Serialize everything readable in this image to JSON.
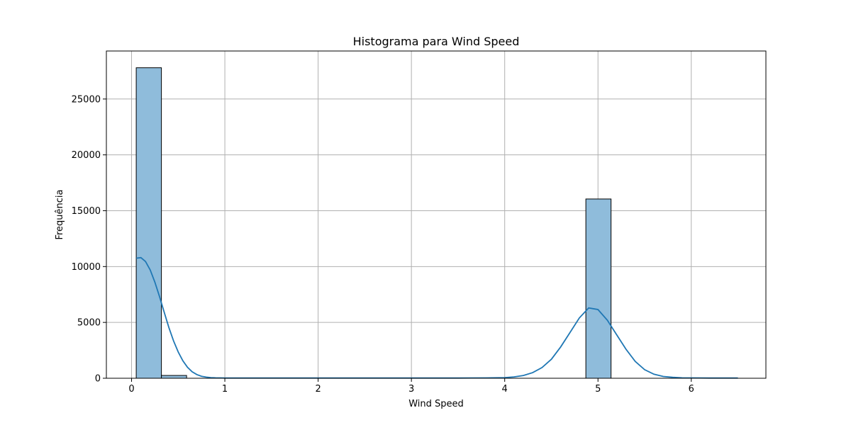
{
  "chart_data": {
    "type": "bar",
    "title": "Histograma para Wind Speed",
    "xlabel": "Wind Speed",
    "ylabel": "Frequência",
    "xlim": [
      -0.27,
      6.8
    ],
    "ylim": [
      0,
      29300
    ],
    "xticks": [
      0,
      1,
      2,
      3,
      4,
      5,
      6
    ],
    "yticks": [
      0,
      5000,
      10000,
      15000,
      20000,
      25000
    ],
    "grid": true,
    "bar_color": "#8fbcdb",
    "bar_edge_color": "#000000",
    "kde_color": "#1f77b4",
    "bins": [
      {
        "x0": 0.05,
        "x1": 0.32,
        "count": 27800
      },
      {
        "x0": 0.32,
        "x1": 0.59,
        "count": 250
      },
      {
        "x0": 4.87,
        "x1": 5.14,
        "count": 16050
      }
    ],
    "kde": {
      "x": [
        0.05,
        0.1,
        0.15,
        0.2,
        0.25,
        0.3,
        0.35,
        0.4,
        0.45,
        0.5,
        0.55,
        0.6,
        0.65,
        0.7,
        0.75,
        0.8,
        0.85,
        0.9,
        0.95,
        1.0,
        1.1,
        1.2,
        1.5,
        2.0,
        2.5,
        3.0,
        3.5,
        3.8,
        4.0,
        4.1,
        4.2,
        4.3,
        4.4,
        4.5,
        4.6,
        4.7,
        4.8,
        4.9,
        5.0,
        5.1,
        5.2,
        5.3,
        5.4,
        5.5,
        5.6,
        5.7,
        5.8,
        5.9,
        6.0,
        6.2,
        6.5
      ],
      "y": [
        10750,
        10800,
        10450,
        9700,
        8600,
        7300,
        5900,
        4550,
        3350,
        2350,
        1560,
        980,
        580,
        330,
        180,
        100,
        60,
        40,
        30,
        20,
        20,
        20,
        20,
        20,
        20,
        20,
        20,
        30,
        60,
        120,
        250,
        500,
        960,
        1700,
        2800,
        4100,
        5400,
        6300,
        6150,
        5200,
        3900,
        2600,
        1500,
        770,
        360,
        160,
        80,
        40,
        30,
        20,
        20
      ]
    }
  }
}
